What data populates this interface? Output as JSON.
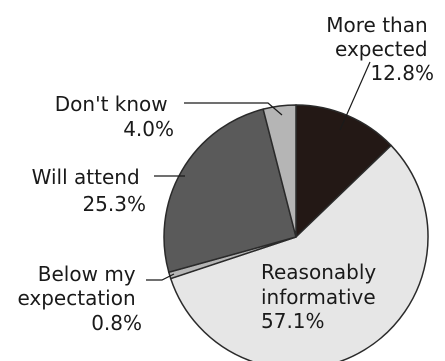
{
  "chart_data": {
    "type": "pie",
    "start_angle_deg": 0,
    "direction": "clockwise",
    "slices": [
      {
        "label_lines": [
          "More than",
          "expected"
        ],
        "value_text": "12.8%",
        "value": 12.8,
        "color": "#231815"
      },
      {
        "label_lines": [
          "Reasonably",
          "informative"
        ],
        "value_text": "57.1%",
        "value": 57.1,
        "color": "#e6e6e6"
      },
      {
        "label_lines": [
          "Below my",
          "expectation"
        ],
        "value_text": "0.8%",
        "value": 0.8,
        "color": "#b5b5b5"
      },
      {
        "label_lines": [
          "Will attend"
        ],
        "value_text": "25.3%",
        "value": 25.3,
        "color": "#5a5a5a"
      },
      {
        "label_lines": [
          "Don't know"
        ],
        "value_text": "4.0%",
        "value": 4.0,
        "color": "#b5b5b5"
      }
    ]
  }
}
